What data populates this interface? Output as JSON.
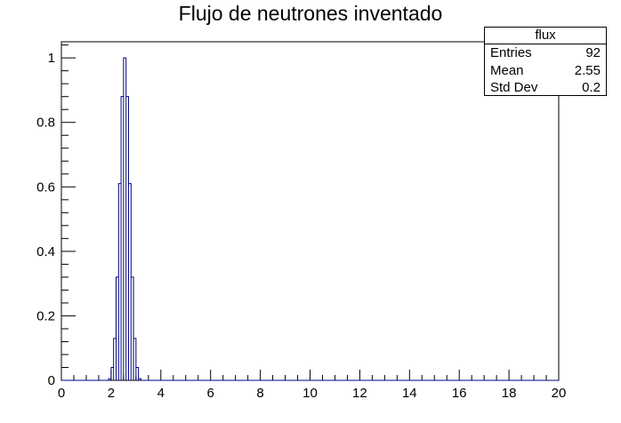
{
  "chart_data": {
    "type": "histogram",
    "title": "Flujo de neutrones inventado",
    "xlabel": "",
    "ylabel": "",
    "xlim": [
      0,
      20
    ],
    "ylim": [
      0,
      1.05
    ],
    "x_ticks": [
      "0",
      "2",
      "4",
      "6",
      "8",
      "10",
      "12",
      "14",
      "16",
      "18",
      "20"
    ],
    "y_ticks": [
      "0",
      "0.2",
      "0.4",
      "0.6",
      "0.8",
      "1"
    ],
    "grid": false,
    "series": [
      {
        "bin_width": 0.1,
        "bins": [
          {
            "x": 1.9,
            "y": 0.005
          },
          {
            "x": 2.0,
            "y": 0.04
          },
          {
            "x": 2.1,
            "y": 0.13
          },
          {
            "x": 2.2,
            "y": 0.32
          },
          {
            "x": 2.3,
            "y": 0.61
          },
          {
            "x": 2.4,
            "y": 0.88
          },
          {
            "x": 2.5,
            "y": 1.0
          },
          {
            "x": 2.6,
            "y": 0.88
          },
          {
            "x": 2.7,
            "y": 0.61
          },
          {
            "x": 2.8,
            "y": 0.32
          },
          {
            "x": 2.9,
            "y": 0.13
          },
          {
            "x": 3.0,
            "y": 0.04
          },
          {
            "x": 3.1,
            "y": 0.005
          }
        ],
        "color": "#000080"
      }
    ],
    "stats": {
      "name": "flux",
      "rows": [
        {
          "label": "Entries",
          "value": "92"
        },
        {
          "label": "Mean",
          "value": "2.55"
        },
        {
          "label": "Std Dev",
          "value": "0.2"
        }
      ]
    }
  }
}
